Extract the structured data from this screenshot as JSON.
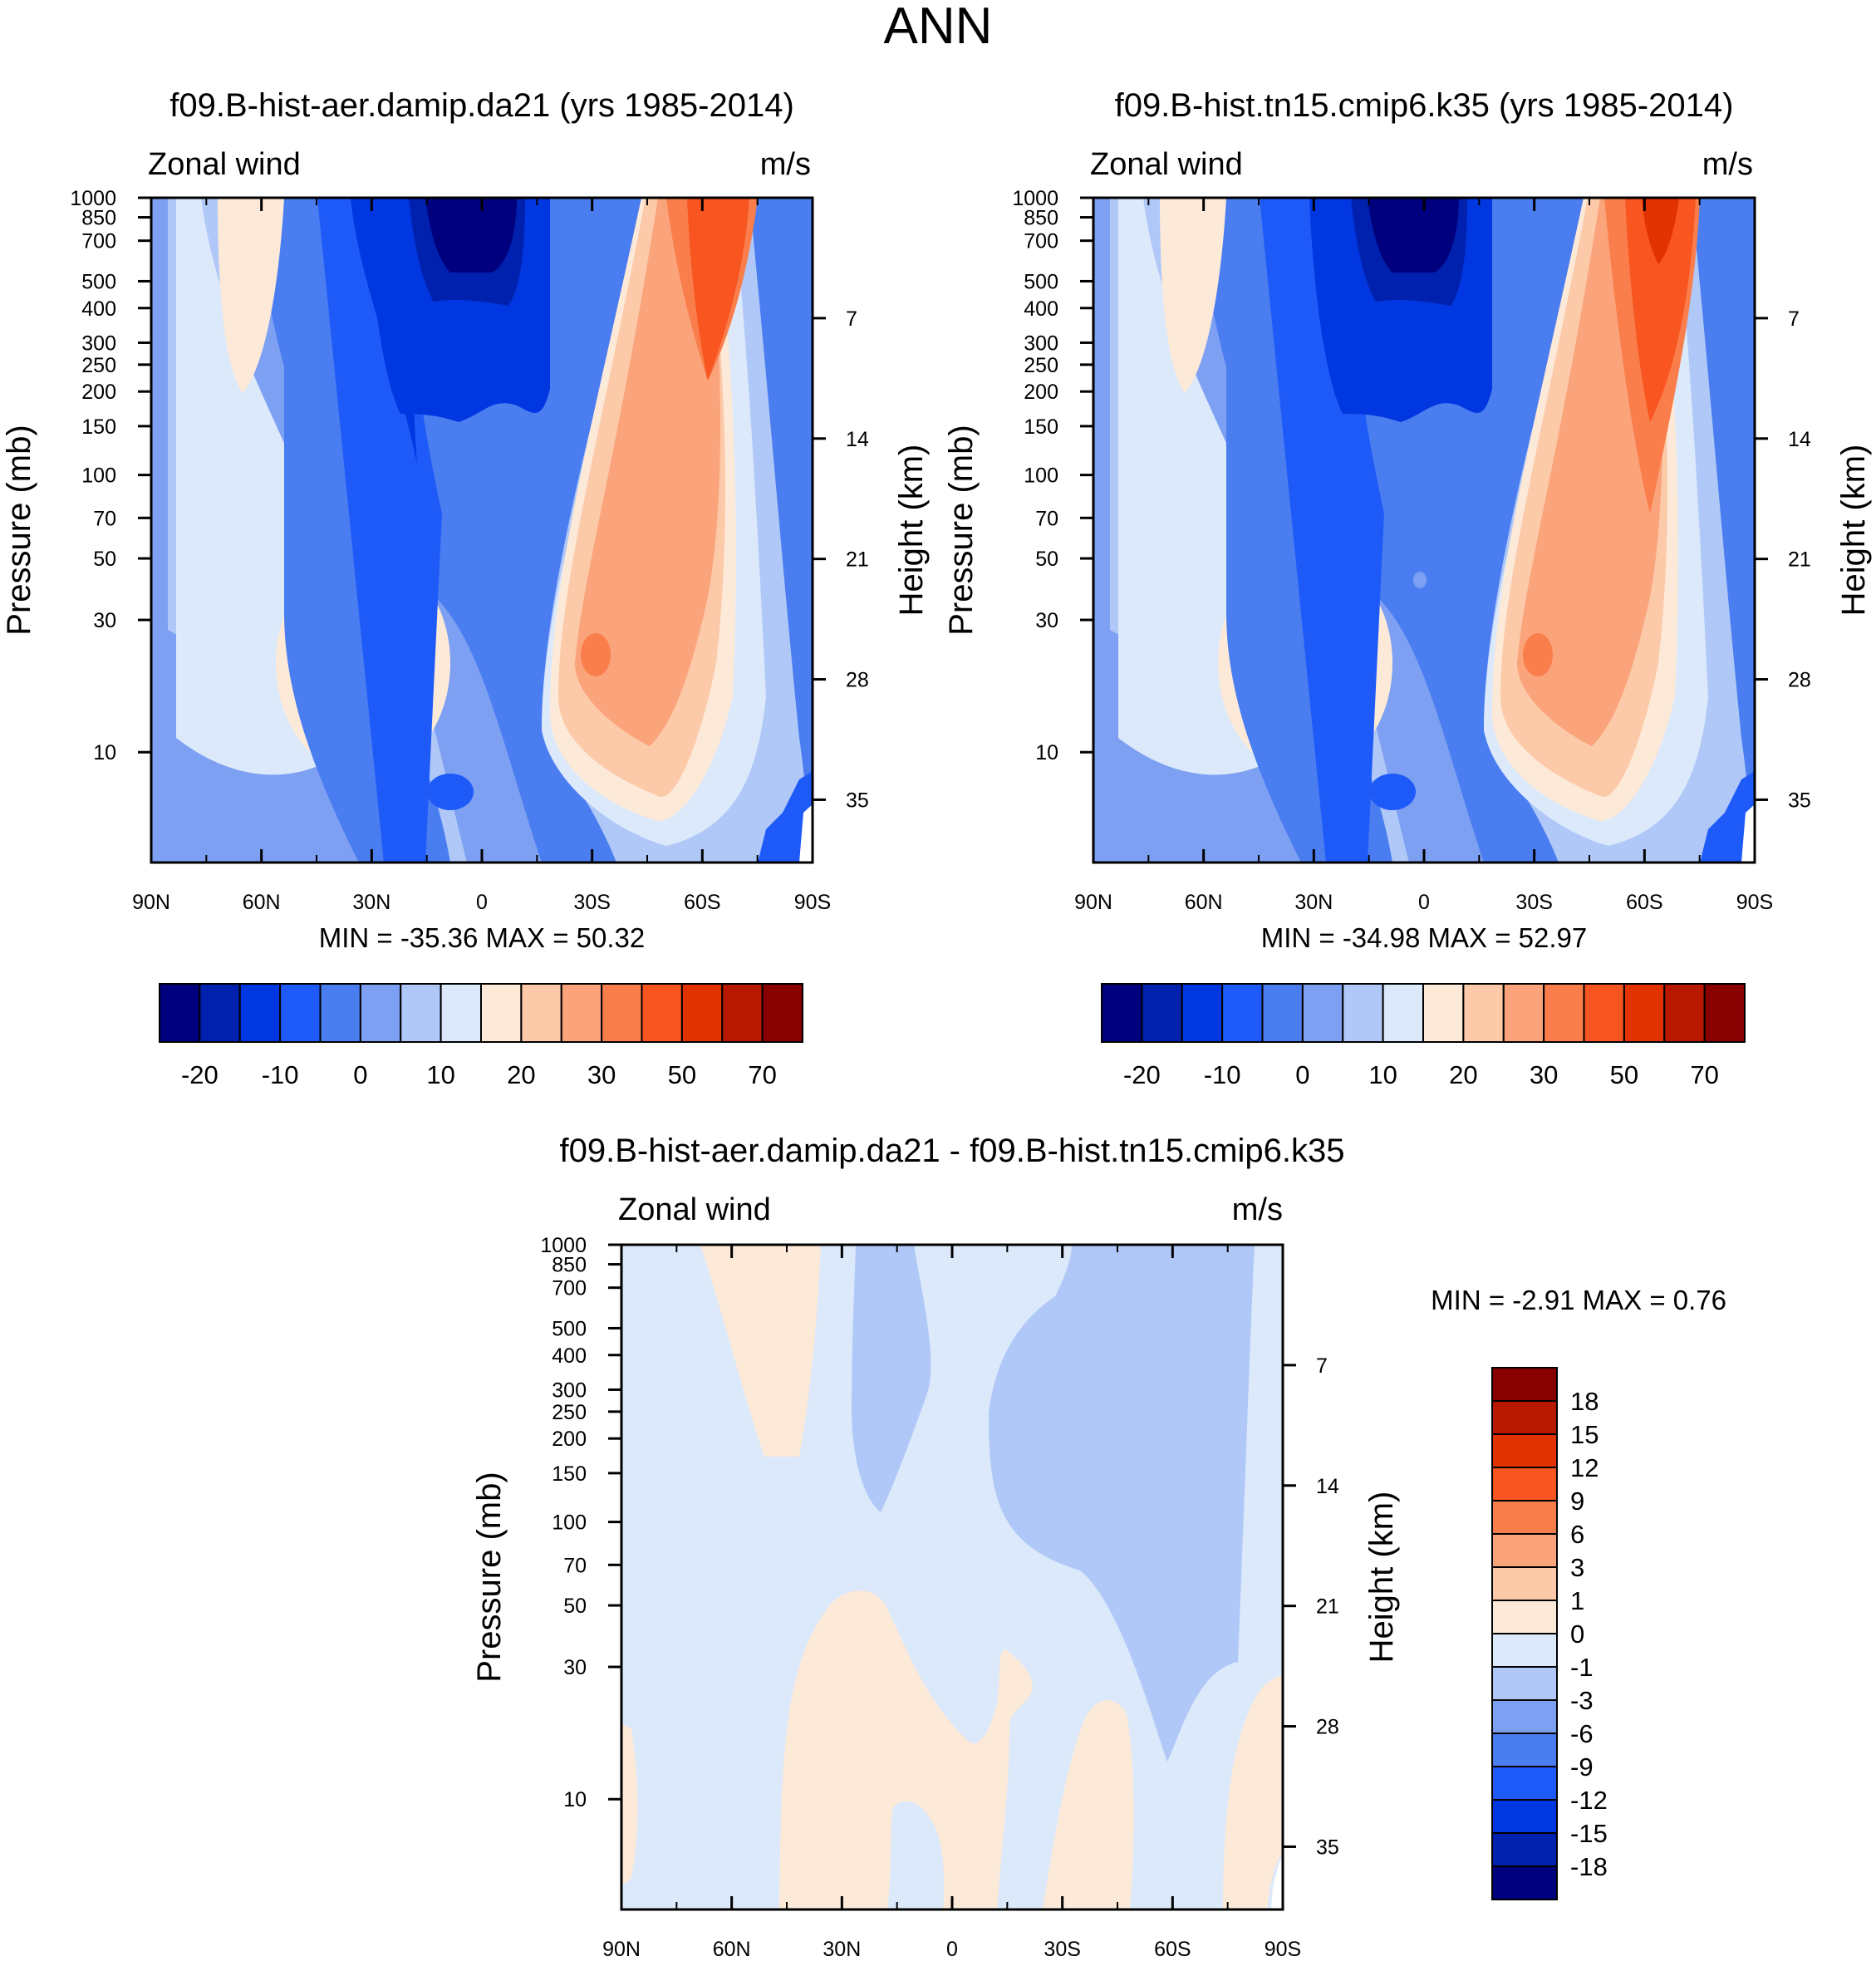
{
  "figure": {
    "title": "ANN",
    "panels": [
      {
        "title": "f09.B-hist-aer.damip.da21 (yrs 1985-2014)",
        "left_label": "Zonal wind",
        "right_label": "m/s",
        "stats": "MIN = -35.36  MAX =  50.32"
      },
      {
        "title": "f09.B-hist.tn15.cmip6.k35 (yrs 1985-2014)",
        "left_label": "Zonal wind",
        "right_label": "m/s",
        "stats": "MIN = -34.98  MAX =  52.97"
      },
      {
        "title": "f09.B-hist-aer.damip.da21 - f09.B-hist.tn15.cmip6.k35",
        "left_label": "Zonal wind",
        "right_label": "m/s",
        "stats": "MIN =  -2.91  MAX =   0.76"
      }
    ]
  },
  "chart_data": [
    {
      "type": "heatmap",
      "panel": 0,
      "title": "f09.B-hist-aer.damip.da21 (yrs 1985-2014)",
      "variable": "Zonal wind",
      "units": "m/s",
      "xlabel": "",
      "ylabel": "Pressure (mb)",
      "y2label": "Height (km)",
      "x_ticks": [
        "90N",
        "60N",
        "30N",
        "0",
        "30S",
        "60S",
        "90S"
      ],
      "x_tick_values": [
        90,
        60,
        30,
        0,
        -30,
        -60,
        -90
      ],
      "y_ticks": [
        10,
        30,
        50,
        70,
        100,
        150,
        200,
        250,
        300,
        400,
        500,
        700,
        850,
        1000
      ],
      "y2_ticks": [
        35,
        28,
        21,
        14,
        7
      ],
      "ylim": [
        1000,
        4
      ],
      "min": -35.36,
      "max": 50.32,
      "colorbar_labels": [
        "-20",
        "-10",
        "0",
        "10",
        "20",
        "30",
        "50",
        "70"
      ]
    },
    {
      "type": "heatmap",
      "panel": 1,
      "title": "f09.B-hist.tn15.cmip6.k35 (yrs 1985-2014)",
      "variable": "Zonal wind",
      "units": "m/s",
      "xlabel": "",
      "ylabel": "Pressure (mb)",
      "y2label": "Height (km)",
      "x_ticks": [
        "90N",
        "60N",
        "30N",
        "0",
        "30S",
        "60S",
        "90S"
      ],
      "x_tick_values": [
        90,
        60,
        30,
        0,
        -30,
        -60,
        -90
      ],
      "y_ticks": [
        10,
        30,
        50,
        70,
        100,
        150,
        200,
        250,
        300,
        400,
        500,
        700,
        850,
        1000
      ],
      "y2_ticks": [
        35,
        28,
        21,
        14,
        7
      ],
      "ylim": [
        1000,
        4
      ],
      "min": -34.98,
      "max": 52.97,
      "colorbar_labels": [
        "-20",
        "-10",
        "0",
        "10",
        "20",
        "30",
        "50",
        "70"
      ]
    },
    {
      "type": "heatmap",
      "panel": 2,
      "title": "f09.B-hist-aer.damip.da21 - f09.B-hist.tn15.cmip6.k35",
      "variable": "Zonal wind",
      "units": "m/s",
      "xlabel": "",
      "ylabel": "Pressure (mb)",
      "y2label": "Height (km)",
      "x_ticks": [
        "90N",
        "60N",
        "30N",
        "0",
        "30S",
        "60S",
        "90S"
      ],
      "x_tick_values": [
        90,
        60,
        30,
        0,
        -30,
        -60,
        -90
      ],
      "y_ticks": [
        10,
        30,
        50,
        70,
        100,
        150,
        200,
        250,
        300,
        400,
        500,
        700,
        850,
        1000
      ],
      "y2_ticks": [
        35,
        28,
        21,
        14,
        7
      ],
      "ylim": [
        1000,
        4
      ],
      "min": -2.91,
      "max": 0.76,
      "colorbar_labels": [
        "18",
        "15",
        "12",
        "9",
        "6",
        "3",
        "1",
        "0",
        "-1",
        "-3",
        "-6",
        "-9",
        "-12",
        "-15",
        "-18"
      ]
    }
  ],
  "colors": {
    "levels16": [
      "#00007f",
      "#0021ad",
      "#0037e0",
      "#1e5af8",
      "#4a7df0",
      "#7ea0f2",
      "#b0c8f8",
      "#dbe9fb",
      "#fde9d8",
      "#fcc9a9",
      "#fba37a",
      "#fa7e4c",
      "#f85520",
      "#e23200",
      "#b81800",
      "#880000"
    ]
  }
}
